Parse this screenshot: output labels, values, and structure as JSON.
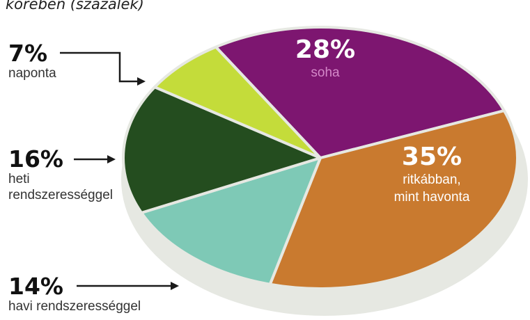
{
  "header": {
    "subtitle": "körében (százalék)"
  },
  "colors": {
    "background": "#ffffff",
    "rim": "#e6e8e2",
    "arrow": "#1a1a1a"
  },
  "chart_data": {
    "type": "pie",
    "title": "",
    "subtitle": "körében (százalék)",
    "unit": "%",
    "slices": [
      {
        "label": "soha",
        "value": 28,
        "value_label": "28%",
        "color": "#7d1670",
        "label_color": "#d488c8"
      },
      {
        "label": "ritkábban, mint havonta",
        "value": 35,
        "value_label": "35%",
        "color": "#c97a2f",
        "label_color": "#ffffff"
      },
      {
        "label": "havi rendszerességgel",
        "value": 14,
        "value_label": "14%",
        "color": "#7ec9b6",
        "label_color": "#222222"
      },
      {
        "label": "heti rendszerességgel",
        "value": 16,
        "value_label": "16%",
        "color": "#244d1f",
        "label_color": "#222222"
      },
      {
        "label": "naponta",
        "value": 7,
        "value_label": "7%",
        "color": "#c4dc3a",
        "label_color": "#222222"
      }
    ],
    "labels": {
      "soha": {
        "pct": "28%",
        "text": "soha"
      },
      "ritkabban": {
        "pct": "35%",
        "line1": "ritkábban,",
        "line2": "mint havonta"
      },
      "havi": {
        "pct": "14%",
        "text": "havi rendszerességgel"
      },
      "heti": {
        "pct": "16%",
        "line1": "heti",
        "line2": "rendszerességgel"
      },
      "naponta": {
        "pct": "7%",
        "text": "naponta"
      }
    }
  }
}
